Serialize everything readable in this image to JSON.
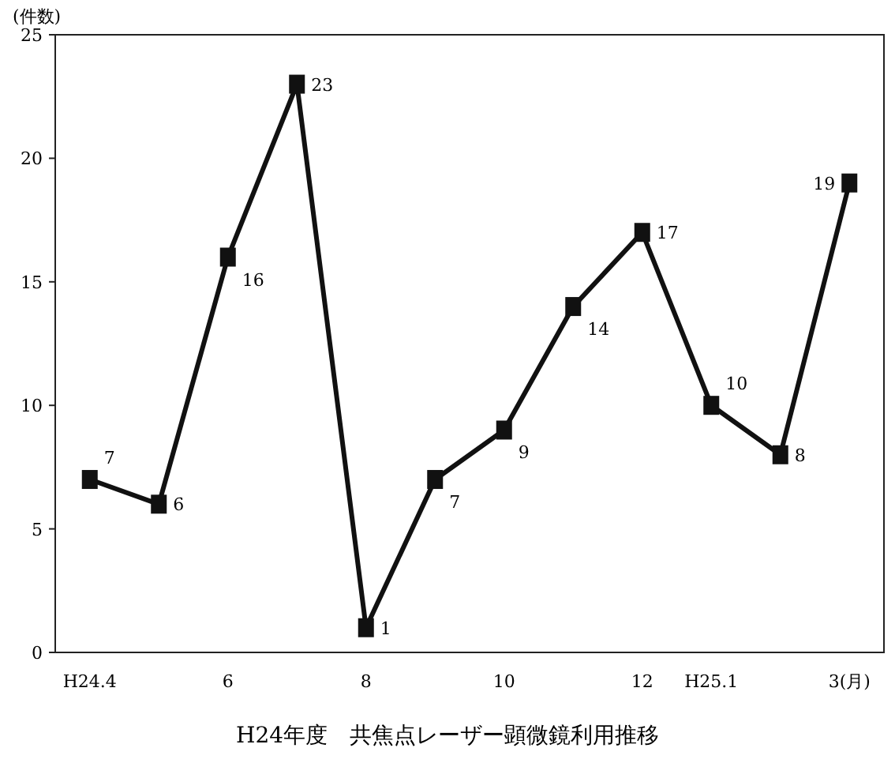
{
  "chart_data": {
    "type": "line",
    "title": "H24年度　共焦点レーザー顕微鏡利用推移",
    "ylabel": "(件数)",
    "categories": [
      "H24.4",
      null,
      "6",
      null,
      "8",
      null,
      "10",
      null,
      "12",
      "H25.1",
      null,
      "3(月)"
    ],
    "values": [
      7,
      6,
      16,
      23,
      1,
      7,
      9,
      14,
      17,
      10,
      8,
      19
    ],
    "color": "#111111",
    "marker": "square",
    "data_labels": true,
    "ylim": [
      0,
      25
    ],
    "yticks": [
      0,
      5,
      10,
      15,
      20,
      25
    ]
  }
}
